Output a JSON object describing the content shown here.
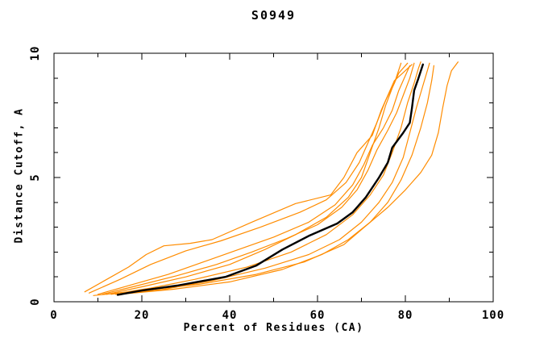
{
  "chart_data": {
    "type": "line",
    "title": "S0949",
    "xlabel": "Percent of Residues (CA)",
    "ylabel": "Distance Cutoff, A",
    "xlim": [
      0,
      100
    ],
    "ylim": [
      0,
      10
    ],
    "x_major_ticks": [
      0,
      20,
      40,
      60,
      80,
      100
    ],
    "x_minor_ticks": [
      10,
      30,
      50,
      70,
      90
    ],
    "y_major_ticks": [
      0,
      5,
      10
    ],
    "y_minor_ticks": [
      1,
      2,
      3,
      4,
      6,
      7,
      8,
      9
    ],
    "grid": false,
    "legend": "none",
    "frame": "box-with-mirrored-inward-ticks",
    "colors": {
      "thin_curves": "#ff8c00",
      "thick_curve": "#000000",
      "axes": "#000000"
    },
    "series": [
      {
        "name": "orange-curve-1",
        "color": "#ff8c00",
        "width": 1.2,
        "points": [
          [
            7,
            0.4
          ],
          [
            12,
            0.9
          ],
          [
            17,
            1.4
          ],
          [
            21,
            1.9
          ],
          [
            25,
            2.25
          ],
          [
            31,
            2.35
          ],
          [
            36,
            2.5
          ],
          [
            45,
            3.2
          ],
          [
            55,
            3.95
          ],
          [
            63,
            4.3
          ],
          [
            66,
            5.0
          ],
          [
            69,
            6.0
          ],
          [
            72.5,
            6.7
          ],
          [
            74.5,
            7.7
          ],
          [
            77.5,
            8.9
          ],
          [
            80,
            9.3
          ],
          [
            81.5,
            9.55
          ]
        ]
      },
      {
        "name": "orange-curve-2",
        "color": "#ff8c00",
        "width": 1.2,
        "points": [
          [
            8,
            0.35
          ],
          [
            15,
            0.9
          ],
          [
            22,
            1.5
          ],
          [
            30,
            2.05
          ],
          [
            38,
            2.45
          ],
          [
            47,
            3.0
          ],
          [
            56,
            3.6
          ],
          [
            62,
            4.1
          ],
          [
            66.5,
            4.8
          ],
          [
            69.5,
            5.6
          ],
          [
            71.5,
            6.4
          ],
          [
            73.5,
            7.2
          ],
          [
            75.5,
            8.1
          ],
          [
            77.5,
            8.8
          ],
          [
            79,
            9.6
          ]
        ]
      },
      {
        "name": "orange-curve-3",
        "color": "#ff8c00",
        "width": 1.2,
        "points": [
          [
            10,
            0.3
          ],
          [
            18,
            0.7
          ],
          [
            26,
            1.1
          ],
          [
            34,
            1.6
          ],
          [
            42,
            2.1
          ],
          [
            50,
            2.6
          ],
          [
            58,
            3.2
          ],
          [
            64,
            3.9
          ],
          [
            68,
            4.7
          ],
          [
            70.5,
            5.5
          ],
          [
            72.5,
            6.3
          ],
          [
            75,
            7.0
          ],
          [
            77,
            7.7
          ],
          [
            78.5,
            8.5
          ],
          [
            80,
            9.1
          ],
          [
            81,
            9.5
          ]
        ]
      },
      {
        "name": "orange-curve-4",
        "color": "#ff8c00",
        "width": 1.2,
        "points": [
          [
            12,
            0.3
          ],
          [
            20,
            0.6
          ],
          [
            30,
            1.0
          ],
          [
            40,
            1.5
          ],
          [
            48,
            2.1
          ],
          [
            55,
            2.7
          ],
          [
            62,
            3.4
          ],
          [
            67,
            4.2
          ],
          [
            70,
            5.0
          ],
          [
            72,
            6.0
          ],
          [
            74,
            7.0
          ],
          [
            75.5,
            7.9
          ],
          [
            77,
            8.6
          ],
          [
            78.5,
            9.2
          ],
          [
            80.5,
            9.6
          ]
        ]
      },
      {
        "name": "orange-curve-5",
        "color": "#ff8c00",
        "width": 1.2,
        "points": [
          [
            13,
            0.3
          ],
          [
            22,
            0.55
          ],
          [
            32,
            0.9
          ],
          [
            44,
            1.4
          ],
          [
            54,
            2.0
          ],
          [
            62,
            2.7
          ],
          [
            68,
            3.5
          ],
          [
            72,
            4.3
          ],
          [
            75,
            5.1
          ],
          [
            77,
            6.0
          ],
          [
            79,
            7.0
          ],
          [
            80.5,
            8.0
          ],
          [
            82,
            8.8
          ],
          [
            83,
            9.4
          ],
          [
            83.5,
            9.65
          ]
        ]
      },
      {
        "name": "orange-curve-6",
        "color": "#ff8c00",
        "width": 1.2,
        "points": [
          [
            14,
            0.3
          ],
          [
            25,
            0.5
          ],
          [
            36,
            0.85
          ],
          [
            48,
            1.35
          ],
          [
            58,
            1.9
          ],
          [
            65,
            2.5
          ],
          [
            70,
            3.2
          ],
          [
            74,
            4.0
          ],
          [
            77,
            4.8
          ],
          [
            79.5,
            5.8
          ],
          [
            81,
            6.8
          ],
          [
            82.5,
            7.8
          ],
          [
            84,
            8.7
          ],
          [
            85,
            9.3
          ],
          [
            85.5,
            9.6
          ]
        ]
      },
      {
        "name": "orange-curve-7",
        "color": "#ff8c00",
        "width": 1.2,
        "points": [
          [
            15,
            0.3
          ],
          [
            27,
            0.5
          ],
          [
            40,
            0.8
          ],
          [
            52,
            1.3
          ],
          [
            61,
            1.9
          ],
          [
            67,
            2.5
          ],
          [
            72,
            3.2
          ],
          [
            76,
            4.0
          ],
          [
            79,
            4.9
          ],
          [
            81.5,
            5.9
          ],
          [
            83.5,
            7.0
          ],
          [
            85,
            8.0
          ],
          [
            86,
            8.9
          ],
          [
            86.5,
            9.5
          ]
        ]
      },
      {
        "name": "orange-curve-8",
        "color": "#ff8c00",
        "width": 1.2,
        "points": [
          [
            9,
            0.25
          ],
          [
            20,
            0.45
          ],
          [
            33,
            0.7
          ],
          [
            46,
            1.1
          ],
          [
            57,
            1.6
          ],
          [
            66,
            2.3
          ],
          [
            71,
            3.05
          ],
          [
            76,
            3.8
          ],
          [
            80,
            4.5
          ],
          [
            83.5,
            5.2
          ],
          [
            86,
            5.9
          ],
          [
            87.5,
            6.8
          ],
          [
            88.5,
            7.8
          ],
          [
            89.5,
            8.7
          ],
          [
            90.5,
            9.3
          ],
          [
            92,
            9.65
          ]
        ]
      },
      {
        "name": "orange-curve-9",
        "color": "#ff8c00",
        "width": 1.2,
        "points": [
          [
            11,
            0.3
          ],
          [
            19,
            0.65
          ],
          [
            28,
            1.05
          ],
          [
            37,
            1.5
          ],
          [
            45,
            2.0
          ],
          [
            53,
            2.55
          ],
          [
            60,
            3.1
          ],
          [
            65.5,
            3.8
          ],
          [
            69,
            4.5
          ],
          [
            71.5,
            5.3
          ],
          [
            73.5,
            6.1
          ],
          [
            76,
            6.9
          ],
          [
            78,
            7.6
          ],
          [
            79.5,
            8.3
          ],
          [
            81,
            9.0
          ],
          [
            82,
            9.6
          ]
        ]
      },
      {
        "name": "black-thick-curve",
        "color": "#000000",
        "width": 2.4,
        "points": [
          [
            14.5,
            0.28
          ],
          [
            20,
            0.45
          ],
          [
            28,
            0.65
          ],
          [
            39,
            1.0
          ],
          [
            46,
            1.45
          ],
          [
            52,
            2.1
          ],
          [
            58,
            2.65
          ],
          [
            64.5,
            3.15
          ],
          [
            68,
            3.6
          ],
          [
            71,
            4.2
          ],
          [
            74,
            5.0
          ],
          [
            76,
            5.6
          ],
          [
            77,
            6.2
          ],
          [
            79.5,
            6.8
          ],
          [
            81,
            7.2
          ],
          [
            81.5,
            7.8
          ],
          [
            82,
            8.5
          ],
          [
            83,
            9.0
          ],
          [
            84,
            9.55
          ]
        ]
      }
    ]
  }
}
